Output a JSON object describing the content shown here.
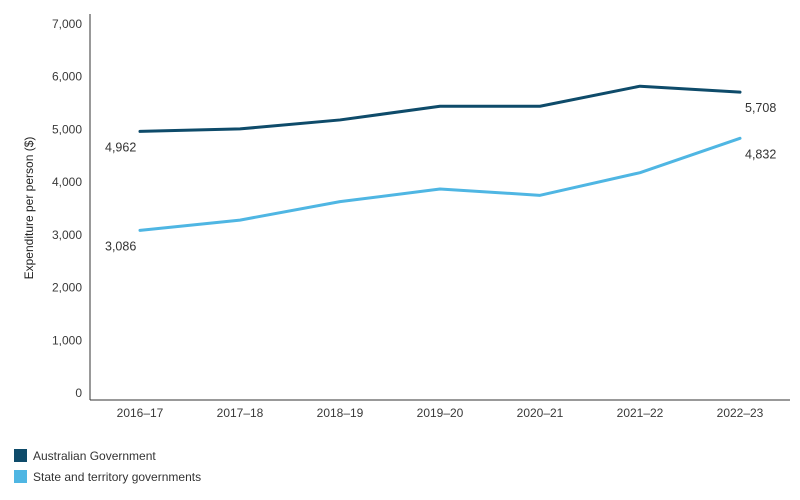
{
  "colors": {
    "australian_government": "#0e4b6a",
    "state_territory": "#4fb6e3",
    "axis": "#333333"
  },
  "legend": {
    "items": [
      {
        "label": "Australian Government",
        "color": "#0e4b6a"
      },
      {
        "label": "State and territory governments",
        "color": "#4fb6e3"
      }
    ]
  },
  "chart_data": {
    "type": "line",
    "title": "",
    "xlabel": "",
    "ylabel": "Expenditure per person ($)",
    "categories": [
      "2016–17",
      "2017–18",
      "2018–19",
      "2019–20",
      "2020–21",
      "2021–22",
      "2022–23"
    ],
    "ylim": [
      0,
      7000
    ],
    "yticks": [
      0,
      1000,
      2000,
      3000,
      4000,
      5000,
      6000,
      7000
    ],
    "ytick_labels": [
      "0",
      "1,000",
      "2,000",
      "3,000",
      "4,000",
      "5,000",
      "6,000",
      "7,000"
    ],
    "grid": false,
    "legend_position": "bottom-left",
    "series": [
      {
        "name": "Australian Government",
        "color": "#0e4b6a",
        "values": [
          4962,
          5010,
          5180,
          5440,
          5440,
          5820,
          5708
        ],
        "labels": [
          {
            "index": 0,
            "text": "4,962"
          },
          {
            "index": 6,
            "text": "5,708"
          }
        ]
      },
      {
        "name": "State and territory governments",
        "color": "#4fb6e3",
        "values": [
          3086,
          3280,
          3630,
          3870,
          3750,
          4180,
          4832
        ],
        "labels": [
          {
            "index": 0,
            "text": "3,086"
          },
          {
            "index": 6,
            "text": "4,832"
          }
        ]
      }
    ]
  }
}
